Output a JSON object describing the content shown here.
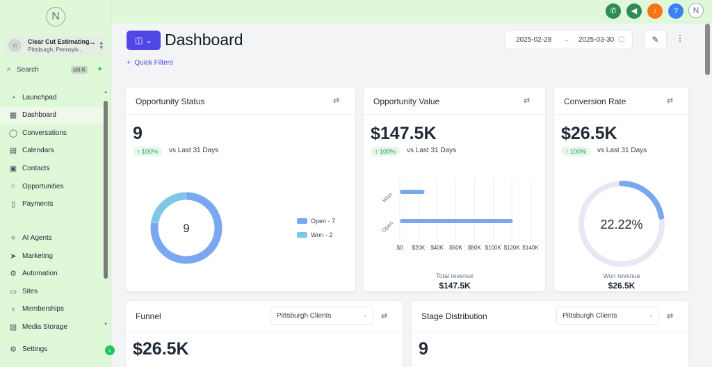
{
  "sidebar": {
    "logo_glyph": "N",
    "account": {
      "name": "Clear Cut Estimating...",
      "location": "Pittsburgh, Pennsylv..."
    },
    "search": {
      "label": "Search",
      "shortcut": "ctrl K"
    },
    "items": [
      {
        "label": "Launchpad",
        "icon": "launchpad-icon"
      },
      {
        "label": "Dashboard",
        "icon": "dashboard-icon",
        "active": true
      },
      {
        "label": "Conversations",
        "icon": "chat-icon"
      },
      {
        "label": "Calendars",
        "icon": "calendar-icon"
      },
      {
        "label": "Contacts",
        "icon": "contacts-icon"
      },
      {
        "label": "Opportunities",
        "icon": "opportunities-icon"
      },
      {
        "label": "Payments",
        "icon": "payments-icon"
      },
      {
        "label": "AI Agents",
        "icon": "sparkle-icon"
      },
      {
        "label": "Marketing",
        "icon": "send-icon"
      },
      {
        "label": "Automation",
        "icon": "automation-icon"
      },
      {
        "label": "Sites",
        "icon": "sites-icon"
      },
      {
        "label": "Memberships",
        "icon": "memberships-icon"
      },
      {
        "label": "Media Storage",
        "icon": "media-icon"
      }
    ],
    "settings_label": "Settings"
  },
  "topbar": {
    "buttons": [
      {
        "name": "phone-button",
        "icon": "phone-icon",
        "color": "#2e8b57"
      },
      {
        "name": "announcements-button",
        "icon": "megaphone-icon",
        "color": "#2e8b57"
      },
      {
        "name": "notifications-button",
        "icon": "bell-icon",
        "color": "#f97316"
      },
      {
        "name": "help-button",
        "icon": "question-icon",
        "color": "#3b82f6"
      }
    ],
    "profile_glyph": "N"
  },
  "header": {
    "title": "Dashboard",
    "quick_filters": "Quick Filters",
    "date_from": "2025-02-28",
    "date_to": "2025-03-30"
  },
  "cards": {
    "opportunity_status": {
      "title": "Opportunity Status",
      "value": "9",
      "change": "↑ 100%",
      "vs": "vs Last 31 Days",
      "center": "9"
    },
    "opportunity_value": {
      "title": "Opportunity Value",
      "value": "$147.5K",
      "change": "↑ 100%",
      "vs": "vs Last 31 Days",
      "footer_label": "Total revenue",
      "footer_value": "$147.5K"
    },
    "conversion_rate": {
      "title": "Conversion Rate",
      "value": "$26.5K",
      "change": "↑ 100%",
      "vs": "vs Last 31 Days",
      "gauge_label": "22.22%",
      "footer_label": "Won revenue",
      "footer_value": "$26.5K"
    },
    "funnel": {
      "title": "Funnel",
      "select": "Pittsburgh Clients",
      "value": "$26.5K"
    },
    "stage_distribution": {
      "title": "Stage Distribution",
      "select": "Pittsburgh Clients",
      "value": "9"
    }
  },
  "chart_data": [
    {
      "type": "pie",
      "title": "Opportunity Status",
      "categories": [
        "Open - 7",
        "Won - 2"
      ],
      "values": [
        7,
        2
      ],
      "colors": [
        "#7aa7f0",
        "#7fc6e8"
      ],
      "legend": "right"
    },
    {
      "type": "bar",
      "title": "Opportunity Value",
      "orientation": "horizontal",
      "categories": [
        "Won",
        "Open"
      ],
      "values": [
        26500,
        121000
      ],
      "xticks": [
        "$0",
        "$20K",
        "$40K",
        "$60K",
        "$80K",
        "$100K",
        "$120K",
        "$140K"
      ],
      "xlim": [
        0,
        140000
      ],
      "xlabel": "Total revenue",
      "color": "#7aa7f0"
    },
    {
      "type": "pie",
      "title": "Conversion Rate",
      "categories": [
        "Won"
      ],
      "values": [
        22.22
      ],
      "max": 100,
      "color": "#7aa7f0",
      "track_color": "#e6e8f3"
    }
  ]
}
